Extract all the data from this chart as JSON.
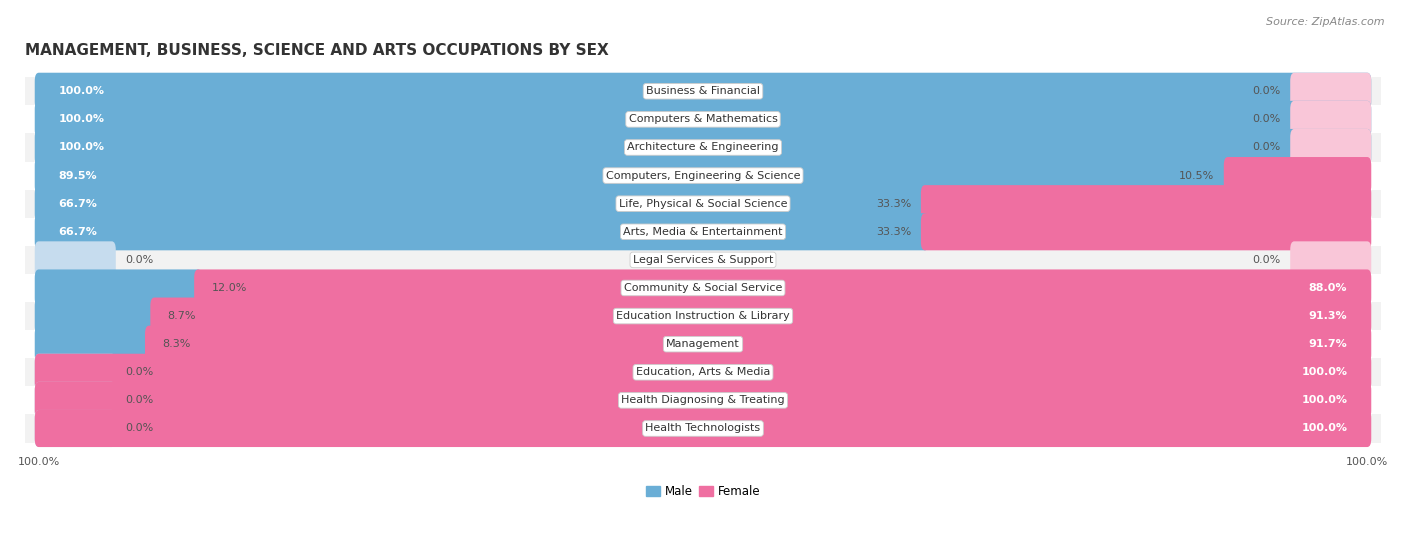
{
  "title": "MANAGEMENT, BUSINESS, SCIENCE AND ARTS OCCUPATIONS BY SEX",
  "source": "Source: ZipAtlas.com",
  "categories": [
    "Business & Financial",
    "Computers & Mathematics",
    "Architecture & Engineering",
    "Computers, Engineering & Science",
    "Life, Physical & Social Science",
    "Arts, Media & Entertainment",
    "Legal Services & Support",
    "Community & Social Service",
    "Education Instruction & Library",
    "Management",
    "Education, Arts & Media",
    "Health Diagnosing & Treating",
    "Health Technologists"
  ],
  "male_pct": [
    100.0,
    100.0,
    100.0,
    89.5,
    66.7,
    66.7,
    0.0,
    12.0,
    8.7,
    8.3,
    0.0,
    0.0,
    0.0
  ],
  "female_pct": [
    0.0,
    0.0,
    0.0,
    10.5,
    33.3,
    33.3,
    0.0,
    88.0,
    91.3,
    91.7,
    100.0,
    100.0,
    100.0
  ],
  "male_color": "#6AAED6",
  "female_color": "#EF6FA1",
  "male_color_light": "#C6DCEE",
  "female_color_light": "#F9C6D8",
  "bg_color": "#ffffff",
  "row_bg_alt": "#f2f2f2",
  "title_fontsize": 11,
  "source_fontsize": 8,
  "bar_label_fontsize": 8,
  "category_fontsize": 8,
  "legend_fontsize": 8.5,
  "axis_label_fontsize": 8
}
